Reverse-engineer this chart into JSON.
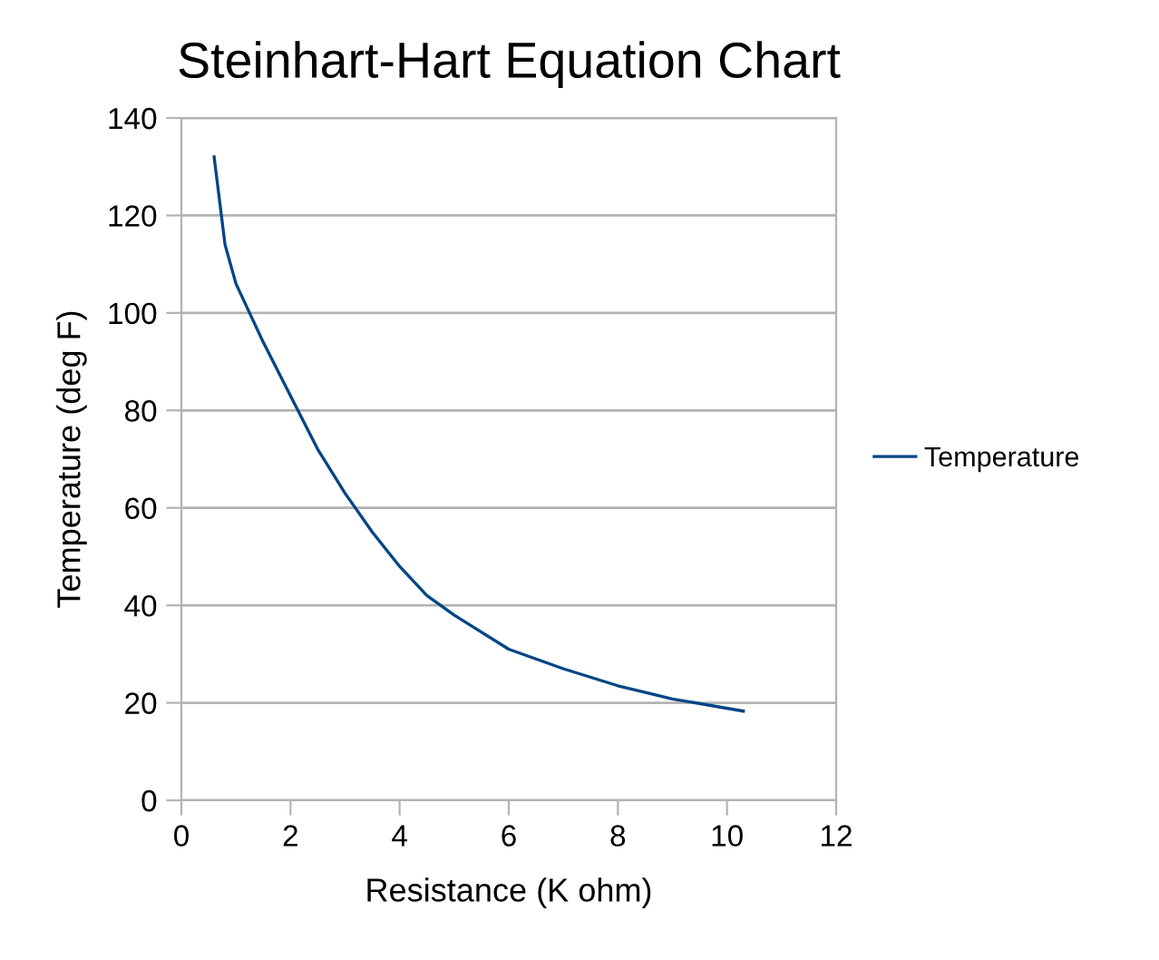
{
  "chart_data": {
    "type": "line",
    "title": "Steinhart-Hart Equation Chart",
    "xlabel": "Resistance (K ohm)",
    "ylabel": "Temperature (deg F)",
    "x": [
      0.6,
      0.8,
      1.0,
      1.5,
      2.0,
      2.5,
      3.0,
      3.5,
      4.0,
      4.5,
      5.0,
      6.0,
      7.0,
      8.0,
      9.0,
      10.3
    ],
    "series": [
      {
        "name": "Temperature",
        "color": "#004586",
        "values": [
          132,
          114,
          106,
          94,
          83,
          72,
          63,
          55,
          48,
          42,
          38,
          31,
          27,
          23.5,
          20.8,
          18.3
        ]
      }
    ],
    "xlim": [
      0,
      12
    ],
    "xticks": [
      0,
      2,
      4,
      6,
      8,
      10,
      12
    ],
    "ylim": [
      0,
      140
    ],
    "yticks": [
      0,
      20,
      40,
      60,
      80,
      100,
      120,
      140
    ],
    "grid": "y",
    "legend": "right",
    "marker": "none",
    "line_style": "solid"
  }
}
